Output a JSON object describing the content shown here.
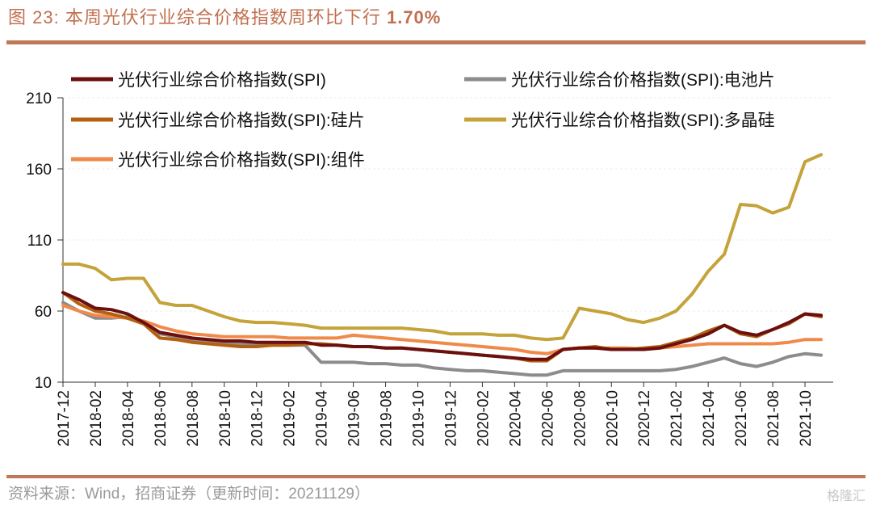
{
  "header": {
    "figure_label": "图 23:",
    "title": "本周光伏行业综合价格指数周环比下行",
    "highlight": "1.70%"
  },
  "footer": {
    "source": "资料来源：Wind，招商证券（更新时间：20211129）",
    "watermark": "格隆汇"
  },
  "chart_data": {
    "type": "line",
    "title": "本周光伏行业综合价格指数周环比下行 1.70%",
    "xlabel": "",
    "ylabel": "",
    "ylim": [
      10,
      210
    ],
    "yticks": [
      10,
      60,
      110,
      160,
      210
    ],
    "grid": true,
    "legend_position": "top",
    "xticks": [
      "2017-12",
      "2018-02",
      "2018-04",
      "2018-06",
      "2018-08",
      "2018-10",
      "2018-12",
      "2019-02",
      "2019-04",
      "2019-06",
      "2019-08",
      "2019-10",
      "2019-12",
      "2020-02",
      "2020-04",
      "2020-06",
      "2020-08",
      "2020-10",
      "2020-12",
      "2021-02",
      "2021-04",
      "2021-06",
      "2021-08",
      "2021-10"
    ],
    "x": [
      "2017-12",
      "2018-01",
      "2018-02",
      "2018-03",
      "2018-04",
      "2018-05",
      "2018-06",
      "2018-07",
      "2018-08",
      "2018-09",
      "2018-10",
      "2018-11",
      "2018-12",
      "2019-01",
      "2019-02",
      "2019-03",
      "2019-04",
      "2019-05",
      "2019-06",
      "2019-07",
      "2019-08",
      "2019-09",
      "2019-10",
      "2019-11",
      "2019-12",
      "2020-01",
      "2020-02",
      "2020-03",
      "2020-04",
      "2020-05",
      "2020-06",
      "2020-07",
      "2020-08",
      "2020-09",
      "2020-10",
      "2020-11",
      "2020-12",
      "2021-01",
      "2021-02",
      "2021-03",
      "2021-04",
      "2021-05",
      "2021-06",
      "2021-07",
      "2021-08",
      "2021-09",
      "2021-10",
      "2021-11"
    ],
    "series": [
      {
        "name": "光伏行业综合价格指数(SPI)",
        "color": "#6b0f0f",
        "values": [
          73,
          68,
          62,
          61,
          58,
          52,
          45,
          43,
          41,
          40,
          39,
          39,
          38,
          38,
          38,
          38,
          36,
          36,
          35,
          35,
          34,
          34,
          33,
          32,
          31,
          30,
          29,
          28,
          27,
          26,
          26,
          33,
          34,
          34,
          33,
          33,
          33,
          34,
          37,
          40,
          44,
          50,
          45,
          43,
          47,
          52,
          58,
          57
        ]
      },
      {
        "name": "光伏行业综合价格指数(SPI):电池片",
        "color": "#8c8c8c",
        "values": [
          66,
          60,
          55,
          55,
          56,
          52,
          44,
          42,
          40,
          38,
          38,
          37,
          36,
          36,
          36,
          36,
          24,
          24,
          24,
          23,
          23,
          22,
          22,
          20,
          19,
          18,
          18,
          17,
          16,
          15,
          15,
          18,
          18,
          18,
          18,
          18,
          18,
          18,
          19,
          21,
          24,
          27,
          23,
          21,
          24,
          28,
          30,
          29
        ]
      },
      {
        "name": "光伏行业综合价格指数(SPI):硅片",
        "color": "#b5600f",
        "values": [
          73,
          65,
          60,
          58,
          55,
          51,
          41,
          40,
          38,
          37,
          36,
          35,
          35,
          36,
          36,
          37,
          37,
          36,
          35,
          35,
          34,
          34,
          33,
          32,
          31,
          30,
          29,
          28,
          27,
          25,
          25,
          33,
          34,
          35,
          33,
          33,
          34,
          35,
          38,
          41,
          46,
          50,
          44,
          42,
          47,
          51,
          58,
          56
        ]
      },
      {
        "name": "光伏行业综合价格指数(SPI):多晶硅",
        "color": "#c4a33a",
        "values": [
          93,
          93,
          90,
          82,
          83,
          83,
          66,
          64,
          64,
          60,
          56,
          53,
          52,
          52,
          51,
          50,
          48,
          48,
          48,
          48,
          48,
          48,
          47,
          46,
          44,
          44,
          44,
          43,
          43,
          41,
          40,
          41,
          62,
          60,
          58,
          54,
          52,
          55,
          60,
          72,
          88,
          100,
          135,
          134,
          129,
          133,
          165,
          170
        ]
      },
      {
        "name": "光伏行业综合价格指数(SPI):组件",
        "color": "#f08a4b",
        "values": [
          64,
          60,
          57,
          56,
          55,
          53,
          49,
          46,
          44,
          43,
          42,
          42,
          42,
          42,
          41,
          41,
          41,
          41,
          43,
          42,
          41,
          40,
          39,
          38,
          37,
          36,
          35,
          34,
          33,
          31,
          30,
          33,
          34,
          34,
          34,
          34,
          33,
          34,
          35,
          36,
          37,
          37,
          37,
          37,
          37,
          38,
          40,
          40
        ]
      }
    ]
  }
}
